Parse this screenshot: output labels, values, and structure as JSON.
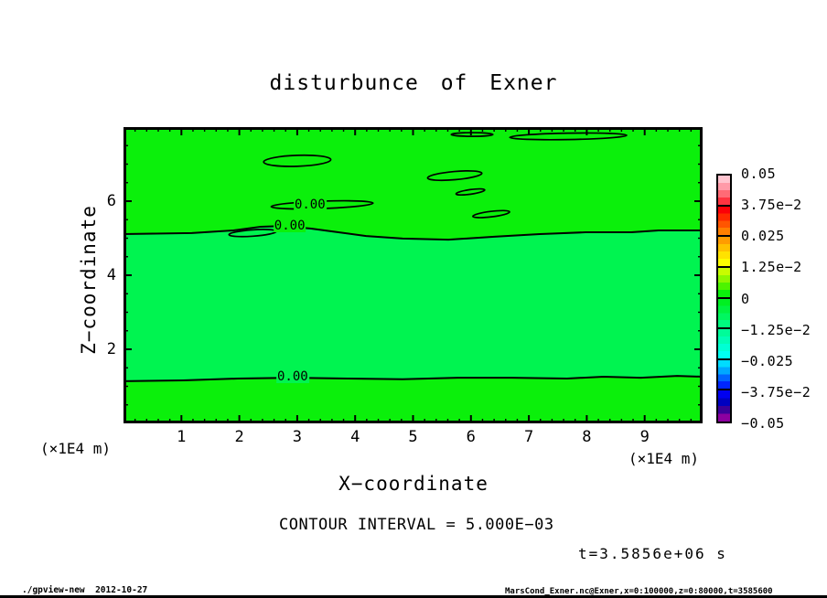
{
  "footer": {
    "left": "./gpview-new  2012-10-27",
    "right": "MarsCond_Exner.nc@Exner,x=0:100000,z=0:80000,t=3585600"
  },
  "chart_data": {
    "type": "contour",
    "title": "disturbunce of Exner",
    "xlabel": "X−coordinate",
    "ylabel": "Z−coordinate",
    "x_unit": "(×1E4 m)",
    "y_unit": "(×1E4 m)",
    "contour_interval": "CONTOUR INTERVAL = 5.000E−03",
    "time_label": "t=3.5856e+06 s",
    "xlim": [
      0,
      10
    ],
    "ylim": [
      0,
      8
    ],
    "x_ticks": [
      1,
      2,
      3,
      4,
      5,
      6,
      7,
      8,
      9
    ],
    "y_ticks": [
      2,
      4,
      6
    ],
    "x_minor_step": 0.2,
    "y_minor_step": 0.5,
    "grid": false,
    "fill_colors": {
      "positive_band": "#0bf00b",
      "negative_band": "#00f450"
    },
    "zero_lines": {
      "upper": [
        [
          0,
          5.11
        ],
        [
          1.18,
          5.14
        ],
        [
          1.9,
          5.21
        ],
        [
          2.37,
          5.31
        ],
        [
          2.76,
          5.33
        ],
        [
          3.24,
          5.26
        ],
        [
          3.71,
          5.16
        ],
        [
          4.19,
          5.06
        ],
        [
          4.82,
          4.99
        ],
        [
          5.61,
          4.96
        ],
        [
          6.4,
          5.04
        ],
        [
          7.19,
          5.11
        ],
        [
          7.98,
          5.16
        ],
        [
          8.77,
          5.16
        ],
        [
          9.24,
          5.21
        ],
        [
          10,
          5.21
        ]
      ],
      "lower": [
        [
          0,
          1.14
        ],
        [
          1.03,
          1.16
        ],
        [
          1.97,
          1.21
        ],
        [
          2.92,
          1.23
        ],
        [
          3.87,
          1.21
        ],
        [
          4.82,
          1.19
        ],
        [
          5.77,
          1.23
        ],
        [
          6.71,
          1.23
        ],
        [
          7.66,
          1.21
        ],
        [
          8.29,
          1.26
        ],
        [
          8.93,
          1.23
        ],
        [
          9.56,
          1.28
        ],
        [
          10,
          1.26
        ]
      ]
    },
    "closed_contours": [
      {
        "cx": 3.0,
        "cy": 7.09,
        "rx": 0.58,
        "ry": 0.148,
        "rot": -2
      },
      {
        "cx": 5.72,
        "cy": 6.69,
        "rx": 0.47,
        "ry": 0.111,
        "rot": -5
      },
      {
        "cx": 5.99,
        "cy": 6.25,
        "rx": 0.25,
        "ry": 0.062,
        "rot": -8
      },
      {
        "cx": 6.35,
        "cy": 5.65,
        "rx": 0.32,
        "ry": 0.074,
        "rot": -7
      },
      {
        "cx": 6.02,
        "cy": 7.8,
        "rx": 0.36,
        "ry": 0.05,
        "rot": 0
      },
      {
        "cx": 7.68,
        "cy": 7.75,
        "rx": 1.01,
        "ry": 0.086,
        "rot": -1
      },
      {
        "cx": 3.43,
        "cy": 5.9,
        "rx": 0.88,
        "ry": 0.099,
        "rot": -2
      },
      {
        "cx": 2.23,
        "cy": 5.14,
        "rx": 0.41,
        "ry": 0.086,
        "rot": -4
      }
    ],
    "contour_labels": [
      {
        "text": "0.00",
        "x": 3.22,
        "y": 5.9,
        "bg": "#0bf00b"
      },
      {
        "text": "0.00",
        "x": 2.87,
        "y": 5.33,
        "bg": "#0bf00b"
      },
      {
        "text": "0.00",
        "x": 2.92,
        "y": 1.26,
        "bg": "#00f450"
      }
    ],
    "colorbar": {
      "tick_labels": [
        "0.05",
        "3.75e−2",
        "0.025",
        "1.25e−2",
        "0",
        "−1.25e−2",
        "−0.025",
        "−3.75e−2",
        "−0.05"
      ],
      "segments": [
        [
          "#ffc4cf",
          "#ff9aa8",
          "#ff6b76",
          "#ff3340"
        ],
        [
          "#fb0007",
          "#ff2a00",
          "#ff5500",
          "#ff7f00"
        ],
        [
          "#ff9c00",
          "#ffc100",
          "#ffe200",
          "#fdfd00"
        ],
        [
          "#c8fc00",
          "#8ef800",
          "#4cf400",
          "#0cf00c"
        ],
        [
          "#00f022",
          "#00f341",
          "#00f760",
          "#00fa7f"
        ],
        [
          "#00fc99",
          "#00feb6",
          "#00ffd4",
          "#00fff2"
        ],
        [
          "#00dcff",
          "#00a8ff",
          "#0064ff",
          "#0026ff"
        ],
        [
          "#0000f0",
          "#0000c0",
          "#3c0099",
          "#8c00a0"
        ]
      ]
    }
  }
}
